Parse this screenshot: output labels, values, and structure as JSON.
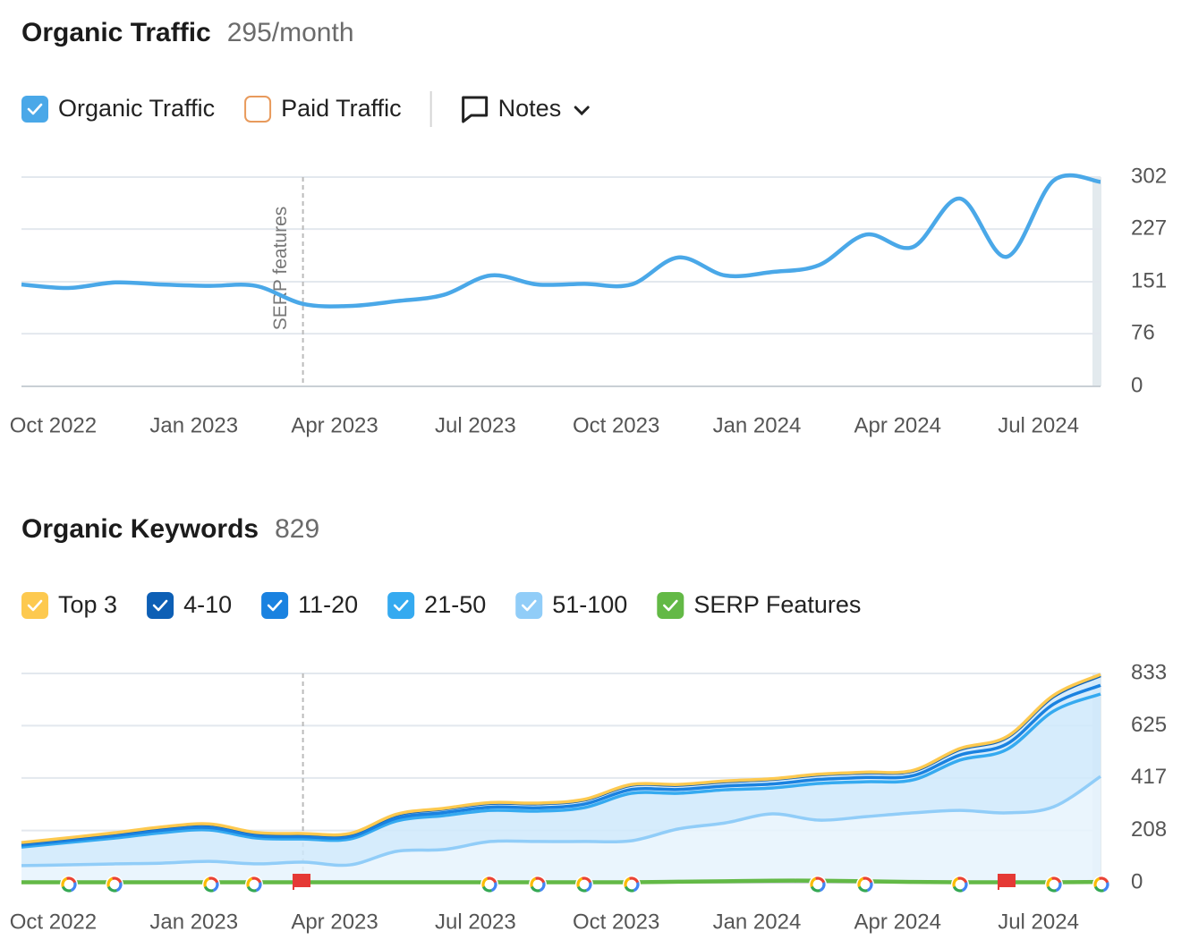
{
  "chart_data": [
    {
      "type": "line",
      "title": "Organic Traffic",
      "subtitle": "295/month",
      "x": [
        "2022-09",
        "2022-10",
        "2022-11",
        "2022-12",
        "2023-01",
        "2023-02",
        "2023-03",
        "2023-04",
        "2023-05",
        "2023-06",
        "2023-07",
        "2023-08",
        "2023-09",
        "2023-10",
        "2023-11",
        "2023-12",
        "2024-01",
        "2024-02",
        "2024-03",
        "2024-04",
        "2024-05",
        "2024-06",
        "2024-07",
        "2024-08"
      ],
      "series": [
        {
          "name": "Organic Traffic",
          "color": "#4aa8e8",
          "values": [
            147,
            142,
            150,
            147,
            145,
            145,
            119,
            116,
            123,
            132,
            160,
            147,
            148,
            147,
            186,
            160,
            165,
            175,
            219,
            201,
            271,
            187,
            297,
            295
          ]
        }
      ],
      "legend_extra": [
        {
          "name": "Paid Traffic",
          "color": "#e89a5c"
        }
      ],
      "notes": "Notes",
      "xlim": [
        "2022-09",
        "2024-08"
      ],
      "xticks": [
        {
          "value": "2022-10",
          "label": "Oct 2022"
        },
        {
          "value": "2023-01",
          "label": "Jan 2023"
        },
        {
          "value": "2023-04",
          "label": "Apr 2023"
        },
        {
          "value": "2023-07",
          "label": "Jul 2023"
        },
        {
          "value": "2023-10",
          "label": "Oct 2023"
        },
        {
          "value": "2024-01",
          "label": "Jan 2024"
        },
        {
          "value": "2024-04",
          "label": "Apr 2024"
        },
        {
          "value": "2024-07",
          "label": "Jul 2024"
        }
      ],
      "ylim": [
        0,
        302
      ],
      "yticks": [
        302,
        227,
        151,
        76,
        0
      ],
      "grid": true,
      "annotations": [
        {
          "x": "2023-03",
          "text": "SERP features"
        }
      ]
    },
    {
      "type": "stacked_area",
      "title": "Organic Keywords",
      "subtitle": "829",
      "x": [
        "2022-09",
        "2022-10",
        "2022-11",
        "2022-12",
        "2023-01",
        "2023-02",
        "2023-03",
        "2023-04",
        "2023-05",
        "2023-06",
        "2023-07",
        "2023-08",
        "2023-09",
        "2023-10",
        "2023-11",
        "2023-12",
        "2024-01",
        "2024-02",
        "2024-03",
        "2024-04",
        "2024-05",
        "2024-06",
        "2024-07",
        "2024-08"
      ],
      "series": [
        {
          "name": "Top 3",
          "color": "#fdc94f",
          "values": [
            2,
            2,
            2,
            2,
            2,
            2,
            2,
            2,
            3,
            3,
            3,
            3,
            3,
            3,
            3,
            3,
            3,
            3,
            3,
            3,
            4,
            4,
            5,
            5
          ]
        },
        {
          "name": "4-10",
          "color": "#0d5fb5",
          "values": [
            8,
            9,
            10,
            11,
            12,
            11,
            11,
            11,
            13,
            14,
            15,
            16,
            16,
            17,
            17,
            17,
            18,
            18,
            18,
            18,
            22,
            25,
            30,
            38
          ]
        },
        {
          "name": "11-20",
          "color": "#1a82e0",
          "values": [
            8,
            8,
            9,
            10,
            10,
            9,
            9,
            9,
            11,
            12,
            13,
            13,
            14,
            15,
            15,
            15,
            16,
            16,
            17,
            17,
            20,
            22,
            28,
            35
          ]
        },
        {
          "name": "21-50",
          "color": "#35aaf0",
          "values": [
            74,
            89,
            103,
            121,
            125,
            103,
            92,
            103,
            121,
            135,
            124,
            121,
            135,
            189,
            142,
            132,
            103,
            146,
            139,
            131,
            200,
            252,
            381,
            328
          ]
        },
        {
          "name": "51-100",
          "color": "#91cdf8",
          "values": [
            68,
            71,
            75,
            78,
            85,
            75,
            82,
            71,
            125,
            132,
            164,
            164,
            164,
            167,
            214,
            238,
            274,
            249,
            263,
            278,
            288,
            278,
            302,
            423
          ]
        },
        {
          "name": "SERP Features",
          "color": "#63b946",
          "kind": "line",
          "values": [
            2,
            2,
            2,
            2,
            2,
            2,
            2,
            2,
            2,
            2,
            2,
            2,
            2,
            2,
            4,
            6,
            8,
            8,
            6,
            3,
            2,
            2,
            2,
            3
          ]
        }
      ],
      "xlim": [
        "2022-09",
        "2024-08"
      ],
      "xticks": [
        {
          "value": "2022-10",
          "label": "Oct 2022"
        },
        {
          "value": "2023-01",
          "label": "Jan 2023"
        },
        {
          "value": "2023-04",
          "label": "Apr 2023"
        },
        {
          "value": "2023-07",
          "label": "Jul 2023"
        },
        {
          "value": "2023-10",
          "label": "Oct 2023"
        },
        {
          "value": "2024-01",
          "label": "Jan 2024"
        },
        {
          "value": "2024-04",
          "label": "Apr 2024"
        },
        {
          "value": "2024-07",
          "label": "Jul 2024"
        }
      ],
      "ylim": [
        0,
        833
      ],
      "yticks": [
        833,
        625,
        417,
        208,
        0
      ],
      "grid": true,
      "annotations": [
        {
          "x": "2023-03"
        }
      ]
    }
  ]
}
